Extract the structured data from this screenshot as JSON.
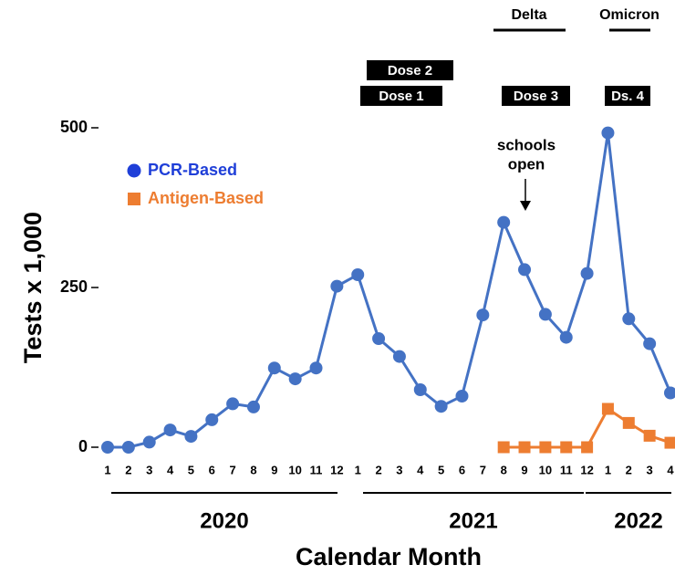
{
  "chart_data": {
    "type": "line",
    "y_label": "Tests x 1,000",
    "x_label": "Calendar Month",
    "categories": [
      "1",
      "2",
      "3",
      "4",
      "5",
      "6",
      "7",
      "8",
      "9",
      "10",
      "11",
      "12",
      "1",
      "2",
      "3",
      "4",
      "5",
      "6",
      "7",
      "8",
      "9",
      "10",
      "11",
      "12",
      "1",
      "2",
      "3",
      "4"
    ],
    "years": [
      "2020",
      "2021",
      "2022"
    ],
    "series": [
      {
        "name": "PCR-Based",
        "color": "#4472c4",
        "marker": "circle",
        "legend_color": "#1f3fd8",
        "values": [
          0,
          0,
          8,
          27,
          17,
          43,
          68,
          63,
          124,
          107,
          124,
          252,
          270,
          170,
          142,
          90,
          64,
          80,
          207,
          352,
          278,
          208,
          172,
          272,
          492,
          201,
          162,
          85
        ]
      },
      {
        "name": "Antigen-Based",
        "color": "#ed7d31",
        "marker": "square",
        "legend_color": "#ed7d31",
        "values": [
          null,
          null,
          null,
          null,
          null,
          null,
          null,
          null,
          null,
          null,
          null,
          null,
          null,
          null,
          null,
          null,
          null,
          null,
          null,
          0,
          0,
          0,
          0,
          0,
          60,
          38,
          18,
          7
        ]
      }
    ],
    "ylim": [
      0,
      500
    ],
    "yticks": [
      0,
      250,
      500
    ],
    "annotations": {
      "boxes": [
        "Dose 2",
        "Dose 1",
        "Dose 3",
        "Ds. 4"
      ],
      "waves": [
        "Delta",
        "Omicron"
      ],
      "note": [
        "schools",
        "open"
      ]
    }
  }
}
